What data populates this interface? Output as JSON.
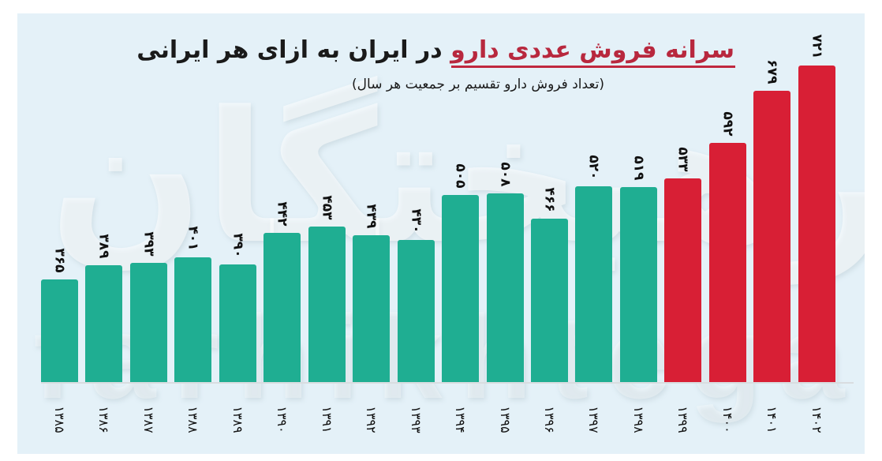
{
  "header": {
    "title_highlight": "سرانه فروش عددی دارو",
    "title_rest": "در ایران به ازای هر ایرانی",
    "subtitle": "(تعداد فروش دارو تقسیم بر جمعیت هر سال)"
  },
  "watermark": {
    "persian": "فرهیختگان",
    "latin": "farhikhtegan"
  },
  "colors": {
    "background": "#e4f1f8",
    "bar_normal": "#1fae92",
    "bar_highlight": "#d81f35",
    "title_accent": "#b8283e"
  },
  "chart_data": {
    "type": "bar",
    "title": "سرانه فروش عددی دارو در ایران به ازای هر ایرانی",
    "subtitle": "(تعداد فروش دارو تقسیم بر جمعیت هر سال)",
    "xlabel": "",
    "ylabel": "",
    "categories": [
      "۱۳۸۵",
      "۱۳۸۶",
      "۱۳۸۷",
      "۱۳۸۸",
      "۱۳۸۹",
      "۱۳۹۰",
      "۱۳۹۱",
      "۱۳۹۲",
      "۱۳۹۳",
      "۱۳۹۴",
      "۱۳۹۵",
      "۱۳۹۶",
      "۱۳۹۷",
      "۱۳۹۸",
      "۱۳۹۹",
      "۱۴۰۰",
      "۱۴۰۱",
      "۱۴۰۲"
    ],
    "categories_latin": [
      "1385",
      "1386",
      "1387",
      "1388",
      "1389",
      "1390",
      "1391",
      "1392",
      "1393",
      "1394",
      "1395",
      "1396",
      "1397",
      "1398",
      "1399",
      "1400",
      "1401",
      "1402"
    ],
    "values": [
      365,
      389,
      393,
      401,
      390,
      442,
      453,
      439,
      430,
      505,
      508,
      466,
      520,
      519,
      533,
      592,
      679,
      721
    ],
    "value_labels": [
      "۳۶۵",
      "۳۸۹",
      "۳۹۳",
      "۴۰۱",
      "۳۹۰",
      "۴۴۲",
      "۴۵۳",
      "۴۳۹",
      "۴۳۰",
      "۵۰۵",
      "۵۰۸",
      "۴۶۶",
      "۵۲۰",
      "۵۱۹",
      "۵۳۳",
      "۵۹۲",
      "۶۷۹",
      "۷۲۱"
    ],
    "highlighted_from_index": 14,
    "series_colors": {
      "1385-1398": "#1fae92",
      "1399-1402": "#d81f35"
    },
    "grid": false,
    "legend": "none",
    "axis_labels_rotated": 90
  }
}
